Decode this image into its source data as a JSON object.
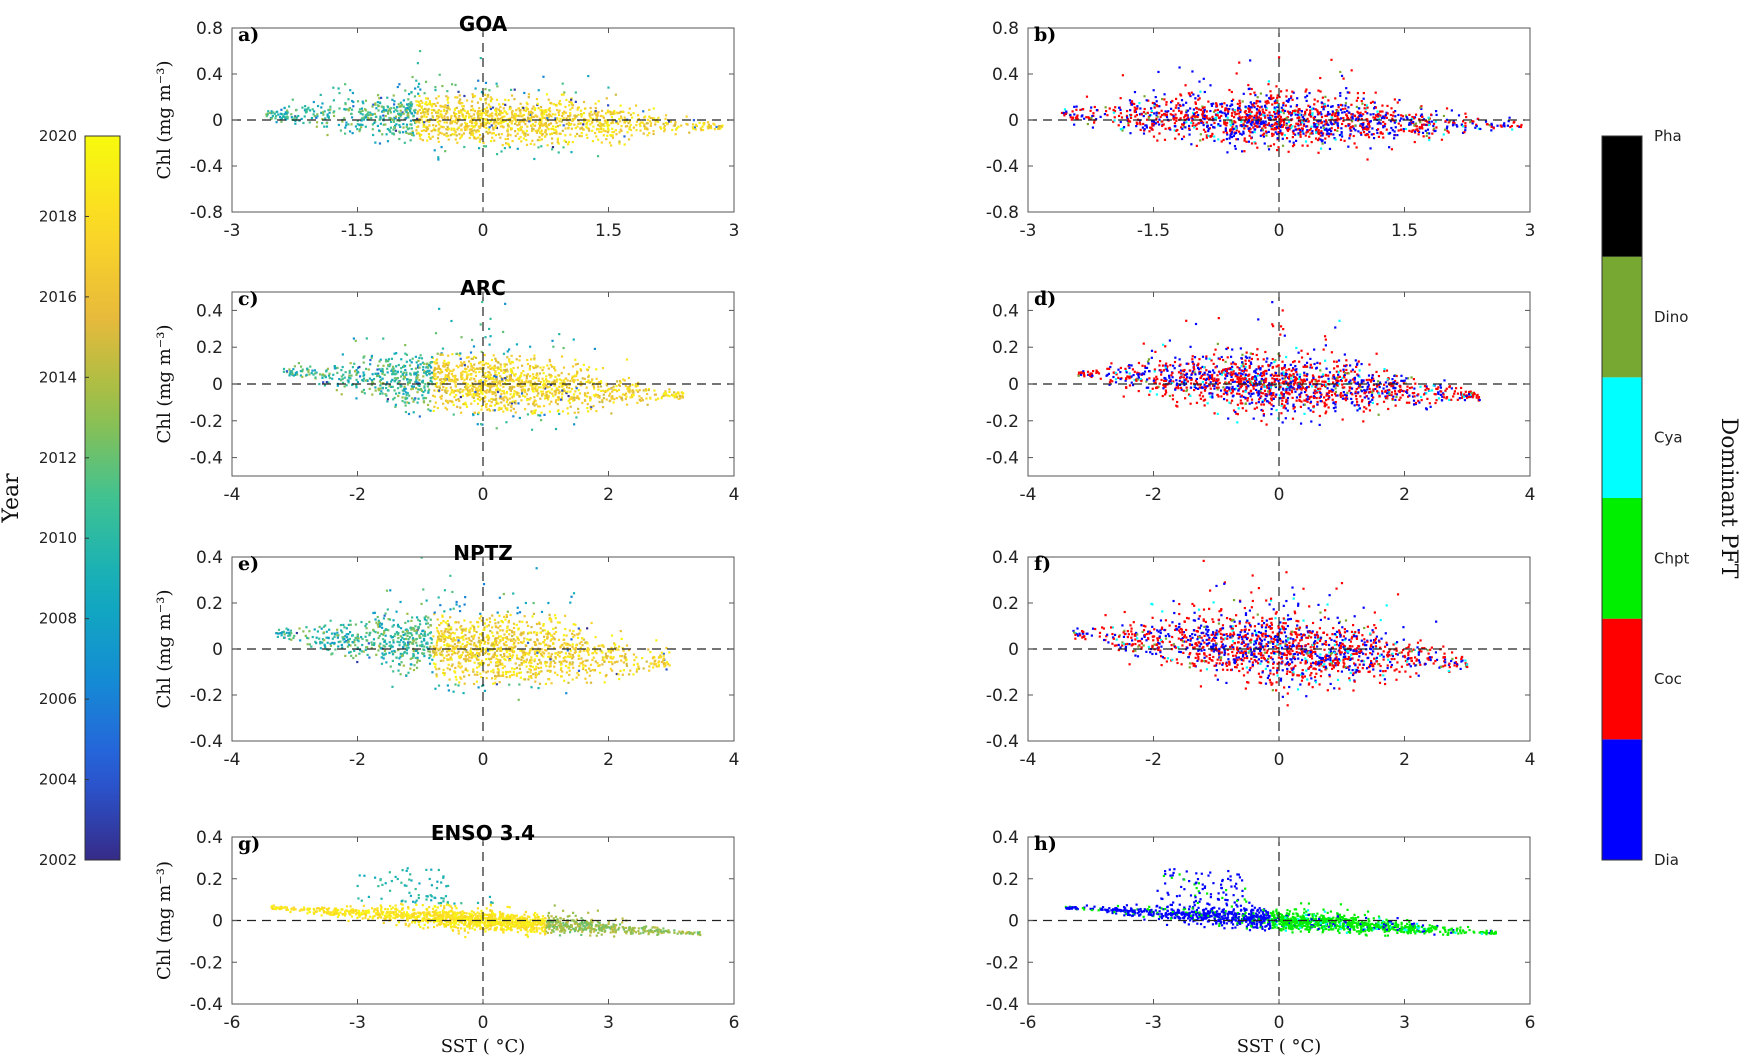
{
  "figure": {
    "left_colorbar": {
      "label": "Year",
      "ticks": [
        "2002",
        "2004",
        "2006",
        "2008",
        "2010",
        "2012",
        "2014",
        "2016",
        "2018",
        "2020"
      ],
      "range": [
        2002,
        2020
      ]
    },
    "right_colorbar": {
      "label": "Dominant PFT",
      "categories": [
        "Dia",
        "Coc",
        "Chpt",
        "Cya",
        "Dino",
        "Pha"
      ],
      "colors": [
        "#0000ff",
        "#ff0000",
        "#00ee00",
        "#00ffff",
        "#77a832",
        "#000000"
      ]
    },
    "xlabel": "SST ( °C)",
    "ylabel": "Chl (mg m⁻³)"
  },
  "chart_data": [
    {
      "id": "a",
      "type": "scatter",
      "label": "a)",
      "title": "GOA",
      "color_by": "year",
      "xlim": [
        -3,
        3
      ],
      "ylim": [
        -0.8,
        0.8
      ],
      "xticks": [
        -3,
        -1.5,
        0,
        1.5,
        3
      ],
      "xtick_labels": [
        "-3",
        "-1.5",
        "0",
        "1.5",
        "3"
      ],
      "yticks": [
        -0.8,
        -0.4,
        0,
        0.4,
        0.8
      ],
      "ytick_labels": [
        "-0.8",
        "-0.4",
        "0",
        "0.4",
        "0.8"
      ],
      "cloud": {
        "x_range": [
          -2.6,
          2.9
        ],
        "y_spread": 0.25,
        "slope": -0.02
      }
    },
    {
      "id": "b",
      "type": "scatter",
      "label": "b)",
      "title": "",
      "color_by": "pft",
      "xlim": [
        -3,
        3
      ],
      "ylim": [
        -0.8,
        0.8
      ],
      "xticks": [
        -3,
        -1.5,
        0,
        1.5,
        3
      ],
      "xtick_labels": [
        "-3",
        "-1.5",
        "0",
        "1.5",
        "3"
      ],
      "yticks": [
        -0.8,
        -0.4,
        0,
        0.4,
        0.8
      ],
      "ytick_labels": [
        "-0.8",
        "-0.4",
        "0",
        "0.4",
        "0.8"
      ],
      "cloud": {
        "x_range": [
          -2.6,
          2.9
        ],
        "y_spread": 0.25,
        "slope": -0.02
      }
    },
    {
      "id": "c",
      "type": "scatter",
      "label": "c)",
      "title": "ARC",
      "color_by": "year",
      "xlim": [
        -4,
        4
      ],
      "ylim": [
        -0.5,
        0.5
      ],
      "xticks": [
        -4,
        -2,
        0,
        2,
        4
      ],
      "xtick_labels": [
        "-4",
        "-2",
        "0",
        "2",
        "4"
      ],
      "yticks": [
        -0.4,
        -0.2,
        0,
        0.2,
        0.4
      ],
      "ytick_labels": [
        "-0.4",
        "-0.2",
        "0",
        "0.2",
        "0.4"
      ],
      "cloud": {
        "x_range": [
          -3.2,
          3.2
        ],
        "y_spread": 0.18,
        "slope": -0.02
      }
    },
    {
      "id": "d",
      "type": "scatter",
      "label": "d)",
      "title": "",
      "color_by": "pft",
      "xlim": [
        -4,
        4
      ],
      "ylim": [
        -0.5,
        0.5
      ],
      "xticks": [
        -4,
        -2,
        0,
        2,
        4
      ],
      "xtick_labels": [
        "-4",
        "-2",
        "0",
        "2",
        "4"
      ],
      "yticks": [
        -0.4,
        -0.2,
        0,
        0.2,
        0.4
      ],
      "ytick_labels": [
        "-0.4",
        "-0.2",
        "0",
        "0.2",
        "0.4"
      ],
      "cloud": {
        "x_range": [
          -3.2,
          3.2
        ],
        "y_spread": 0.18,
        "slope": -0.02
      }
    },
    {
      "id": "e",
      "type": "scatter",
      "label": "e)",
      "title": "NPTZ",
      "color_by": "year",
      "xlim": [
        -4,
        4
      ],
      "ylim": [
        -0.4,
        0.4
      ],
      "xticks": [
        -4,
        -2,
        0,
        2,
        4
      ],
      "xtick_labels": [
        "-4",
        "-2",
        "0",
        "2",
        "4"
      ],
      "yticks": [
        -0.4,
        -0.2,
        0,
        0.2,
        0.4
      ],
      "ytick_labels": [
        "-0.4",
        "-0.2",
        "0",
        "0.2",
        "0.4"
      ],
      "cloud": {
        "x_range": [
          -3.3,
          3.0
        ],
        "y_spread": 0.17,
        "slope": -0.02
      }
    },
    {
      "id": "f",
      "type": "scatter",
      "label": "f)",
      "title": "",
      "color_by": "pft",
      "xlim": [
        -4,
        4
      ],
      "ylim": [
        -0.4,
        0.4
      ],
      "xticks": [
        -4,
        -2,
        0,
        2,
        4
      ],
      "xtick_labels": [
        "-4",
        "-2",
        "0",
        "2",
        "4"
      ],
      "yticks": [
        -0.4,
        -0.2,
        0,
        0.2,
        0.4
      ],
      "ytick_labels": [
        "-0.4",
        "-0.2",
        "0",
        "0.2",
        "0.4"
      ],
      "cloud": {
        "x_range": [
          -3.3,
          3.0
        ],
        "y_spread": 0.17,
        "slope": -0.02
      }
    },
    {
      "id": "g",
      "type": "scatter",
      "label": "g)",
      "title": "ENSO 3.4",
      "color_by": "year",
      "xlim": [
        -6,
        6
      ],
      "ylim": [
        -0.4,
        0.4
      ],
      "xticks": [
        -6,
        -3,
        0,
        3,
        6
      ],
      "xtick_labels": [
        "-6",
        "-3",
        "0",
        "3",
        "6"
      ],
      "yticks": [
        -0.4,
        -0.2,
        0,
        0.2,
        0.4
      ],
      "ytick_labels": [
        "-0.4",
        "-0.2",
        "0",
        "0.2",
        "0.4"
      ],
      "xlabel": "SST ( °C)",
      "cloud": {
        "x_range": [
          -5.1,
          5.2
        ],
        "y_spread": 0.05,
        "slope": -0.012
      }
    },
    {
      "id": "h",
      "type": "scatter",
      "label": "h)",
      "title": "",
      "color_by": "pft",
      "xlim": [
        -6,
        6
      ],
      "ylim": [
        -0.4,
        0.4
      ],
      "xticks": [
        -6,
        -3,
        0,
        3,
        6
      ],
      "xtick_labels": [
        "-6",
        "-3",
        "0",
        "3",
        "6"
      ],
      "yticks": [
        -0.4,
        -0.2,
        0,
        0.2,
        0.4
      ],
      "ytick_labels": [
        "-0.4",
        "-0.2",
        "0",
        "0.2",
        "0.4"
      ],
      "xlabel": "SST ( °C)",
      "cloud": {
        "x_range": [
          -5.1,
          5.2
        ],
        "y_spread": 0.05,
        "slope": -0.012
      }
    }
  ]
}
